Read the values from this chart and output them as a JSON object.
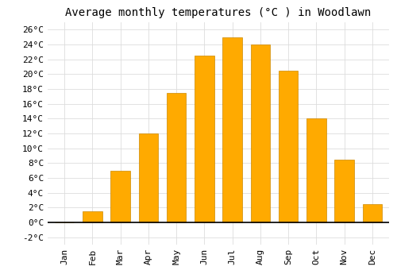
{
  "title": "Average monthly temperatures (°C ) in Woodlawn",
  "months": [
    "Jan",
    "Feb",
    "Mar",
    "Apr",
    "May",
    "Jun",
    "Jul",
    "Aug",
    "Sep",
    "Oct",
    "Nov",
    "Dec"
  ],
  "values": [
    0,
    1.5,
    7.0,
    12.0,
    17.5,
    22.5,
    25.0,
    24.0,
    20.5,
    14.0,
    8.5,
    2.5
  ],
  "bar_color": "#FFAA00",
  "bar_edge_color": "#CC8800",
  "ylim": [
    -3,
    27
  ],
  "yticks": [
    -2,
    0,
    2,
    4,
    6,
    8,
    10,
    12,
    14,
    16,
    18,
    20,
    22,
    24,
    26
  ],
  "ytick_labels": [
    "-2°C",
    "0°C",
    "2°C",
    "4°C",
    "6°C",
    "8°C",
    "10°C",
    "12°C",
    "14°C",
    "16°C",
    "18°C",
    "20°C",
    "22°C",
    "24°C",
    "26°C"
  ],
  "grid_color": "#dddddd",
  "background_color": "#ffffff",
  "title_fontsize": 10,
  "tick_fontsize": 8,
  "font_family": "monospace",
  "bar_width": 0.7
}
